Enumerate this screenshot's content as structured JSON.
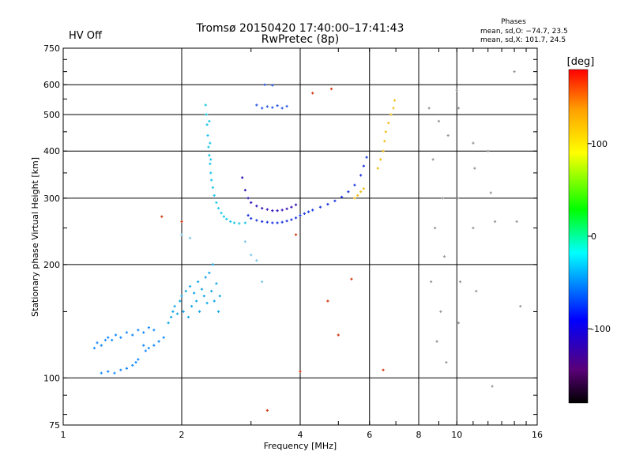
{
  "header": {
    "title_line1": "Tromsø 20150420 17:40:00–17:41:43",
    "title_line2": "RwPretec (8p)",
    "hv_status": "HV Off",
    "hv_color": "#cc0000",
    "stats_title": "Phases",
    "stats_o": "mean, sd,O: −74.7, 23.5",
    "stats_x": "mean, sd,X: 101.7, 24.5"
  },
  "chart_data": {
    "type": "scatter",
    "xlabel": "Frequency [MHz]",
    "ylabel": "Stationary phase Virtual Height [km]",
    "x_scale": "log",
    "y_scale": "log",
    "xlim": [
      1,
      16
    ],
    "ylim": [
      75,
      750
    ],
    "x_ticks": [
      1,
      2,
      4,
      6,
      8,
      10,
      16
    ],
    "x_tick_labels": [
      "1",
      "2",
      "4",
      "6",
      "8",
      "10",
      "16"
    ],
    "y_ticks": [
      75,
      100,
      200,
      300,
      400,
      500,
      600,
      750
    ],
    "y_tick_labels": [
      "75",
      "100",
      "200",
      "300",
      "400",
      "500",
      "600",
      "750"
    ],
    "grid": true,
    "colorbar": {
      "label": "[deg]",
      "range": [
        -180,
        180
      ],
      "ticks": [
        100,
        0,
        -100
      ],
      "tick_labels": [
        "100",
        "0",
        "-100"
      ],
      "colors": [
        "#000000",
        "#5a0078",
        "#0000ff",
        "#00ffff",
        "#00ff00",
        "#ffff00",
        "#ffa000",
        "#ff0000"
      ]
    },
    "series": [
      {
        "color": "#1a8cff",
        "points": [
          [
            1.2,
            120
          ],
          [
            1.22,
            124
          ],
          [
            1.25,
            122
          ],
          [
            1.28,
            126
          ],
          [
            1.3,
            128
          ],
          [
            1.33,
            126
          ],
          [
            1.36,
            130
          ],
          [
            1.4,
            128
          ],
          [
            1.45,
            132
          ],
          [
            1.5,
            130
          ],
          [
            1.55,
            134
          ],
          [
            1.6,
            132
          ],
          [
            1.65,
            136
          ],
          [
            1.7,
            134
          ],
          [
            1.25,
            103
          ],
          [
            1.3,
            104
          ],
          [
            1.35,
            103
          ],
          [
            1.4,
            105
          ],
          [
            1.45,
            106
          ],
          [
            1.5,
            108
          ],
          [
            1.53,
            110
          ],
          [
            1.55,
            112
          ],
          [
            1.6,
            122
          ],
          [
            1.62,
            118
          ],
          [
            1.65,
            120
          ],
          [
            1.7,
            122
          ],
          [
            1.75,
            125
          ],
          [
            1.8,
            128
          ]
        ]
      },
      {
        "color": "#18a8e6",
        "points": [
          [
            1.85,
            140
          ],
          [
            1.88,
            145
          ],
          [
            1.9,
            150
          ],
          [
            1.92,
            155
          ],
          [
            1.95,
            148
          ],
          [
            1.98,
            160
          ],
          [
            2.0,
            165
          ],
          [
            2.02,
            150
          ],
          [
            2.05,
            170
          ],
          [
            2.08,
            145
          ],
          [
            2.1,
            175
          ],
          [
            2.12,
            155
          ],
          [
            2.15,
            168
          ],
          [
            2.18,
            160
          ],
          [
            2.2,
            180
          ],
          [
            2.22,
            150
          ],
          [
            2.25,
            172
          ],
          [
            2.28,
            165
          ],
          [
            2.3,
            185
          ],
          [
            2.32,
            158
          ],
          [
            2.35,
            190
          ],
          [
            2.38,
            170
          ],
          [
            2.4,
            200
          ],
          [
            2.42,
            160
          ],
          [
            2.45,
            178
          ],
          [
            2.48,
            150
          ],
          [
            2.5,
            165
          ]
        ]
      },
      {
        "color": "#22c8e8",
        "points": [
          [
            2.3,
            530
          ],
          [
            2.31,
            500
          ],
          [
            2.32,
            470
          ],
          [
            2.33,
            440
          ],
          [
            2.34,
            410
          ],
          [
            2.35,
            390
          ],
          [
            2.36,
            370
          ],
          [
            2.37,
            350
          ],
          [
            2.38,
            335
          ],
          [
            2.4,
            320
          ],
          [
            2.42,
            305
          ],
          [
            2.45,
            292
          ],
          [
            2.48,
            282
          ],
          [
            2.52,
            274
          ],
          [
            2.56,
            268
          ],
          [
            2.6,
            264
          ],
          [
            2.66,
            260
          ],
          [
            2.72,
            258
          ],
          [
            2.8,
            257
          ],
          [
            2.9,
            258
          ],
          [
            2.35,
            480
          ],
          [
            2.36,
            420
          ],
          [
            2.37,
            380
          ]
        ]
      },
      {
        "color": "#1f3be0",
        "points": [
          [
            2.95,
            270
          ],
          [
            3.0,
            265
          ],
          [
            3.1,
            262
          ],
          [
            3.2,
            260
          ],
          [
            3.3,
            259
          ],
          [
            3.4,
            258
          ],
          [
            3.5,
            258
          ],
          [
            3.6,
            259
          ],
          [
            3.7,
            261
          ],
          [
            3.8,
            263
          ],
          [
            3.9,
            266
          ],
          [
            4.0,
            270
          ],
          [
            4.1,
            273
          ],
          [
            4.2,
            276
          ],
          [
            4.3,
            279
          ],
          [
            4.5,
            284
          ],
          [
            4.7,
            289
          ],
          [
            4.9,
            295
          ],
          [
            5.1,
            302
          ],
          [
            5.3,
            312
          ],
          [
            5.5,
            325
          ],
          [
            5.7,
            345
          ],
          [
            5.8,
            365
          ],
          [
            5.9,
            385
          ]
        ]
      },
      {
        "color": "#3a18b8",
        "points": [
          [
            2.85,
            340
          ],
          [
            2.9,
            315
          ],
          [
            2.95,
            300
          ],
          [
            3.0,
            292
          ],
          [
            3.1,
            286
          ],
          [
            3.2,
            282
          ],
          [
            3.3,
            280
          ],
          [
            3.4,
            278
          ],
          [
            3.5,
            278
          ],
          [
            3.6,
            279
          ],
          [
            3.7,
            281
          ],
          [
            3.8,
            284
          ],
          [
            3.9,
            288
          ]
        ]
      },
      {
        "color": "#2f5ee8",
        "points": [
          [
            3.2,
            520
          ],
          [
            3.3,
            525
          ],
          [
            3.4,
            522
          ],
          [
            3.5,
            528
          ],
          [
            3.6,
            520
          ],
          [
            3.7,
            526
          ],
          [
            3.1,
            530
          ],
          [
            3.25,
            600
          ],
          [
            3.4,
            598
          ]
        ]
      },
      {
        "color": "#f0c020",
        "points": [
          [
            6.3,
            360
          ],
          [
            6.4,
            380
          ],
          [
            6.5,
            400
          ],
          [
            6.55,
            425
          ],
          [
            6.6,
            450
          ],
          [
            6.7,
            475
          ],
          [
            6.8,
            500
          ],
          [
            6.9,
            520
          ],
          [
            6.95,
            545
          ],
          [
            5.5,
            300
          ],
          [
            5.6,
            305
          ],
          [
            5.7,
            312
          ],
          [
            5.8,
            318
          ]
        ]
      },
      {
        "color": "#7cc8e8",
        "points": [
          [
            3.1,
            205
          ],
          [
            3.0,
            212
          ],
          [
            2.9,
            230
          ],
          [
            3.2,
            180
          ],
          [
            2.0,
            240
          ],
          [
            2.1,
            235
          ]
        ]
      },
      {
        "color": "#9a9a9a",
        "points": [
          [
            8.5,
            520
          ],
          [
            9.0,
            480
          ],
          [
            9.5,
            440
          ],
          [
            8.7,
            380
          ],
          [
            9.2,
            300
          ],
          [
            8.8,
            250
          ],
          [
            9.3,
            210
          ],
          [
            8.6,
            180
          ],
          [
            9.1,
            150
          ],
          [
            8.9,
            125
          ],
          [
            9.4,
            110
          ],
          [
            10.0,
            580
          ],
          [
            10.1,
            520
          ],
          [
            10.05,
            300
          ],
          [
            10.2,
            180
          ],
          [
            10.1,
            140
          ],
          [
            11.0,
            420
          ],
          [
            11.1,
            360
          ],
          [
            11.0,
            250
          ],
          [
            11.2,
            170
          ],
          [
            12.0,
            400
          ],
          [
            12.2,
            310
          ],
          [
            12.5,
            260
          ],
          [
            12.3,
            95
          ],
          [
            14.0,
            650
          ],
          [
            14.2,
            260
          ],
          [
            14.5,
            155
          ]
        ]
      },
      {
        "color": "#d23c14",
        "points": [
          [
            1.78,
            268
          ],
          [
            2.0,
            260
          ],
          [
            3.3,
            82
          ],
          [
            4.0,
            104
          ],
          [
            6.5,
            105
          ],
          [
            5.0,
            130
          ],
          [
            3.9,
            240
          ],
          [
            5.4,
            183
          ],
          [
            4.7,
            160
          ],
          [
            4.3,
            570
          ],
          [
            4.8,
            585
          ]
        ]
      }
    ]
  }
}
